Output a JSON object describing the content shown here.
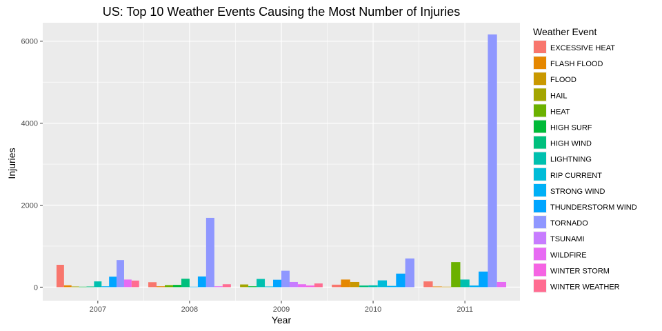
{
  "chart_data": {
    "type": "bar",
    "title": "US: Top 10 Weather Events Causing the Most Number of Injuries",
    "xlabel": "Year",
    "ylabel": "Injuries",
    "ylim": [
      -330,
      6450
    ],
    "yticks": [
      0,
      2000,
      4000,
      6000
    ],
    "grid": true,
    "legend_title": "Weather Event",
    "legend_position": "right",
    "categories": [
      "2007",
      "2008",
      "2009",
      "2010",
      "2011"
    ],
    "groups": [
      {
        "year": "2007",
        "bars": [
          {
            "event": "EXCESSIVE HEAT",
            "value": 545
          },
          {
            "event": "FLASH FLOOD",
            "value": 45
          },
          {
            "event": "HAIL",
            "value": 15
          },
          {
            "event": "HIGH SURF",
            "value": 10
          },
          {
            "event": "HIGH WIND",
            "value": 15
          },
          {
            "event": "LIGHTNING",
            "value": 140
          },
          {
            "event": "STRONG WIND",
            "value": 20
          },
          {
            "event": "THUNDERSTORM WIND",
            "value": 255
          },
          {
            "event": "TORNADO",
            "value": 660
          },
          {
            "event": "WILDFIRE",
            "value": 185
          },
          {
            "event": "WINTER WEATHER",
            "value": 160
          }
        ]
      },
      {
        "year": "2008",
        "bars": [
          {
            "event": "EXCESSIVE HEAT",
            "value": 120
          },
          {
            "event": "FLASH FLOOD",
            "value": 20
          },
          {
            "event": "HEAT",
            "value": 50
          },
          {
            "event": "HIGH SURF",
            "value": 55
          },
          {
            "event": "HIGH WIND",
            "value": 205
          },
          {
            "event": "STRONG WIND",
            "value": 10
          },
          {
            "event": "THUNDERSTORM WIND",
            "value": 260
          },
          {
            "event": "TORNADO",
            "value": 1690
          },
          {
            "event": "WILDFIRE",
            "value": 20
          },
          {
            "event": "WINTER WEATHER",
            "value": 70
          }
        ]
      },
      {
        "year": "2009",
        "bars": [
          {
            "event": "HAIL",
            "value": 65
          },
          {
            "event": "HIGH SURF",
            "value": 20
          },
          {
            "event": "LIGHTNING",
            "value": 200
          },
          {
            "event": "RIP CURRENT",
            "value": 15
          },
          {
            "event": "THUNDERSTORM WIND",
            "value": 180
          },
          {
            "event": "TORNADO",
            "value": 400
          },
          {
            "event": "TSUNAMI",
            "value": 125
          },
          {
            "event": "WILDFIRE",
            "value": 70
          },
          {
            "event": "WINTER STORM",
            "value": 40
          },
          {
            "event": "WINTER WEATHER",
            "value": 90
          }
        ]
      },
      {
        "year": "2010",
        "bars": [
          {
            "event": "EXCESSIVE HEAT",
            "value": 60
          },
          {
            "event": "FLASH FLOOD",
            "value": 185
          },
          {
            "event": "FLOOD",
            "value": 125
          },
          {
            "event": "HIGH WIND",
            "value": 40
          },
          {
            "event": "LIGHTNING",
            "value": 45
          },
          {
            "event": "RIP CURRENT",
            "value": 165
          },
          {
            "event": "STRONG WIND",
            "value": 30
          },
          {
            "event": "THUNDERSTORM WIND",
            "value": 330
          },
          {
            "event": "TORNADO",
            "value": 700
          }
        ]
      },
      {
        "year": "2011",
        "bars": [
          {
            "event": "EXCESSIVE HEAT",
            "value": 140
          },
          {
            "event": "FLASH FLOOD",
            "value": 15
          },
          {
            "event": "FLOOD",
            "value": 10
          },
          {
            "event": "HEAT",
            "value": 610
          },
          {
            "event": "LIGHTNING",
            "value": 185
          },
          {
            "event": "STRONG WIND",
            "value": 40
          },
          {
            "event": "THUNDERSTORM WIND",
            "value": 380
          },
          {
            "event": "TORNADO",
            "value": 6165
          },
          {
            "event": "WILDFIRE",
            "value": 125
          }
        ]
      }
    ],
    "legend": [
      {
        "name": "EXCESSIVE HEAT",
        "color": "#F8766D"
      },
      {
        "name": "FLASH FLOOD",
        "color": "#E58700"
      },
      {
        "name": "FLOOD",
        "color": "#C99800"
      },
      {
        "name": "HAIL",
        "color": "#A3A500"
      },
      {
        "name": "HEAT",
        "color": "#6BB100"
      },
      {
        "name": "HIGH SURF",
        "color": "#00BA38"
      },
      {
        "name": "HIGH WIND",
        "color": "#00BF7D"
      },
      {
        "name": "LIGHTNING",
        "color": "#00C0AF"
      },
      {
        "name": "RIP CURRENT",
        "color": "#00BCD8"
      },
      {
        "name": "STRONG WIND",
        "color": "#00B0F6"
      },
      {
        "name": "THUNDERSTORM WIND",
        "color": "#00A5FF"
      },
      {
        "name": "TORNADO",
        "color": "#8F97FF"
      },
      {
        "name": "TSUNAMI",
        "color": "#C77CFF"
      },
      {
        "name": "WILDFIRE",
        "color": "#E76BF3"
      },
      {
        "name": "WINTER STORM",
        "color": "#F564E3"
      },
      {
        "name": "WINTER WEATHER",
        "color": "#FF6C91"
      }
    ],
    "colors": {
      "panel_background": "#EBEBEB",
      "grid": "#FFFFFF",
      "tick_label": "#4D4D4D"
    }
  }
}
